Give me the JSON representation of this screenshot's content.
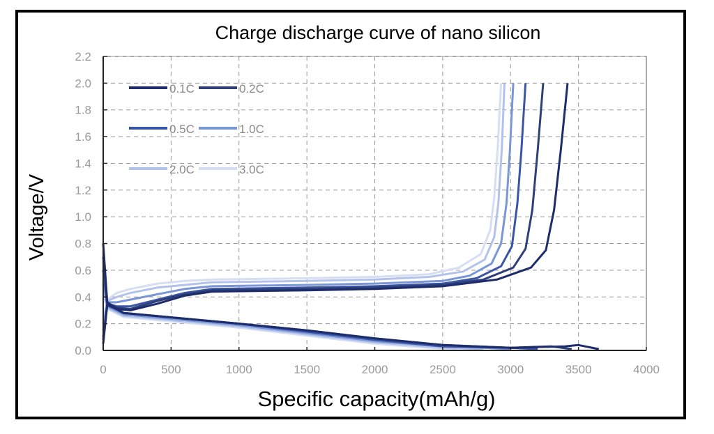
{
  "chart_data": {
    "type": "line",
    "title": "Charge discharge curve of nano silicon",
    "xlabel": "Specific capacity(mAh/g)",
    "ylabel": "Voltage/V",
    "xlim": [
      0,
      4000
    ],
    "ylim": [
      0,
      2.2
    ],
    "xticks": [
      "0",
      "500",
      "1000",
      "1500",
      "2000",
      "2500",
      "3000",
      "3500",
      "4000"
    ],
    "yticks": [
      "0.0",
      "0.2",
      "0.4",
      "0.6",
      "0.8",
      "1.0",
      "1.2",
      "1.4",
      "1.6",
      "1.8",
      "2.0",
      "2.2"
    ],
    "grid": true,
    "legend_position": "top-left",
    "series": [
      {
        "name": "0.1C",
        "color": "#1d2c6b",
        "charge": [
          [
            0,
            0.05
          ],
          [
            30,
            0.34
          ],
          [
            100,
            0.31
          ],
          [
            200,
            0.3
          ],
          [
            400,
            0.35
          ],
          [
            600,
            0.41
          ],
          [
            800,
            0.44
          ],
          [
            1500,
            0.45
          ],
          [
            2000,
            0.46
          ],
          [
            2500,
            0.48
          ],
          [
            2900,
            0.53
          ],
          [
            3150,
            0.62
          ],
          [
            3260,
            0.75
          ],
          [
            3320,
            1.05
          ],
          [
            3370,
            1.5
          ],
          [
            3420,
            2.0
          ]
        ],
        "discharge": [
          [
            0,
            0.8
          ],
          [
            30,
            0.36
          ],
          [
            150,
            0.28
          ],
          [
            1000,
            0.2
          ],
          [
            1500,
            0.15
          ],
          [
            2000,
            0.09
          ],
          [
            2500,
            0.04
          ],
          [
            3000,
            0.02
          ],
          [
            3400,
            0.03
          ],
          [
            3500,
            0.04
          ],
          [
            3650,
            0.01
          ]
        ]
      },
      {
        "name": "0.2C",
        "color": "#2f3f78",
        "charge": [
          [
            0,
            0.08
          ],
          [
            30,
            0.34
          ],
          [
            100,
            0.32
          ],
          [
            200,
            0.31
          ],
          [
            400,
            0.37
          ],
          [
            600,
            0.42
          ],
          [
            800,
            0.45
          ],
          [
            1500,
            0.46
          ],
          [
            2000,
            0.47
          ],
          [
            2500,
            0.49
          ],
          [
            2800,
            0.53
          ],
          [
            3020,
            0.62
          ],
          [
            3110,
            0.76
          ],
          [
            3160,
            1.05
          ],
          [
            3200,
            1.5
          ],
          [
            3240,
            2.0
          ]
        ],
        "discharge": [
          [
            0,
            0.7
          ],
          [
            30,
            0.35
          ],
          [
            150,
            0.28
          ],
          [
            1000,
            0.2
          ],
          [
            1500,
            0.15
          ],
          [
            2000,
            0.09
          ],
          [
            2500,
            0.04
          ],
          [
            3000,
            0.02
          ],
          [
            3300,
            0.03
          ],
          [
            3450,
            0.01
          ]
        ]
      },
      {
        "name": "0.5C",
        "color": "#3a55a6",
        "charge": [
          [
            0,
            0.1
          ],
          [
            30,
            0.35
          ],
          [
            100,
            0.33
          ],
          [
            200,
            0.33
          ],
          [
            400,
            0.38
          ],
          [
            600,
            0.43
          ],
          [
            800,
            0.46
          ],
          [
            1500,
            0.47
          ],
          [
            2000,
            0.48
          ],
          [
            2500,
            0.5
          ],
          [
            2750,
            0.54
          ],
          [
            2930,
            0.63
          ],
          [
            3010,
            0.78
          ],
          [
            3050,
            1.1
          ],
          [
            3080,
            1.5
          ],
          [
            3110,
            2.0
          ]
        ],
        "discharge": [
          [
            0,
            0.6
          ],
          [
            30,
            0.34
          ],
          [
            150,
            0.28
          ],
          [
            1000,
            0.2
          ],
          [
            1500,
            0.14
          ],
          [
            2000,
            0.08
          ],
          [
            2500,
            0.03
          ],
          [
            3000,
            0.02
          ],
          [
            3200,
            0.01
          ]
        ]
      },
      {
        "name": "1.0C",
        "color": "#7b96d6",
        "charge": [
          [
            0,
            0.15
          ],
          [
            30,
            0.36
          ],
          [
            100,
            0.36
          ],
          [
            200,
            0.38
          ],
          [
            400,
            0.42
          ],
          [
            600,
            0.46
          ],
          [
            800,
            0.48
          ],
          [
            1500,
            0.49
          ],
          [
            2000,
            0.5
          ],
          [
            2500,
            0.52
          ],
          [
            2700,
            0.56
          ],
          [
            2860,
            0.65
          ],
          [
            2930,
            0.8
          ],
          [
            2970,
            1.1
          ],
          [
            2995,
            1.5
          ],
          [
            3020,
            2.0
          ]
        ],
        "discharge": [
          [
            0,
            0.5
          ],
          [
            30,
            0.33
          ],
          [
            150,
            0.27
          ],
          [
            1000,
            0.19
          ],
          [
            1500,
            0.13
          ],
          [
            2000,
            0.07
          ],
          [
            2500,
            0.03
          ],
          [
            2800,
            0.02
          ],
          [
            3000,
            0.01
          ]
        ]
      },
      {
        "name": "2.0C",
        "color": "#b3c2ea",
        "charge": [
          [
            0,
            0.2
          ],
          [
            30,
            0.37
          ],
          [
            100,
            0.4
          ],
          [
            200,
            0.43
          ],
          [
            400,
            0.47
          ],
          [
            600,
            0.49
          ],
          [
            800,
            0.51
          ],
          [
            1500,
            0.52
          ],
          [
            2000,
            0.53
          ],
          [
            2400,
            0.55
          ],
          [
            2650,
            0.59
          ],
          [
            2810,
            0.68
          ],
          [
            2880,
            0.85
          ],
          [
            2910,
            1.1
          ],
          [
            2935,
            1.5
          ],
          [
            2955,
            2.0
          ]
        ],
        "discharge": [
          [
            0,
            0.45
          ],
          [
            30,
            0.32
          ],
          [
            150,
            0.26
          ],
          [
            1000,
            0.18
          ],
          [
            1500,
            0.12
          ],
          [
            2000,
            0.06
          ],
          [
            2500,
            0.02
          ],
          [
            2800,
            0.01
          ]
        ]
      },
      {
        "name": "3.0C",
        "color": "#d6def4",
        "charge": [
          [
            0,
            0.25
          ],
          [
            30,
            0.38
          ],
          [
            100,
            0.43
          ],
          [
            200,
            0.46
          ],
          [
            400,
            0.5
          ],
          [
            600,
            0.52
          ],
          [
            800,
            0.53
          ],
          [
            1500,
            0.54
          ],
          [
            2000,
            0.55
          ],
          [
            2400,
            0.57
          ],
          [
            2620,
            0.62
          ],
          [
            2780,
            0.72
          ],
          [
            2850,
            0.9
          ],
          [
            2880,
            1.15
          ],
          [
            2905,
            1.5
          ],
          [
            2930,
            2.0
          ]
        ],
        "discharge": [
          [
            0,
            0.4
          ],
          [
            30,
            0.31
          ],
          [
            150,
            0.25
          ],
          [
            1000,
            0.17
          ],
          [
            1500,
            0.11
          ],
          [
            2000,
            0.05
          ],
          [
            2400,
            0.02
          ],
          [
            2600,
            0.01
          ]
        ]
      }
    ]
  }
}
